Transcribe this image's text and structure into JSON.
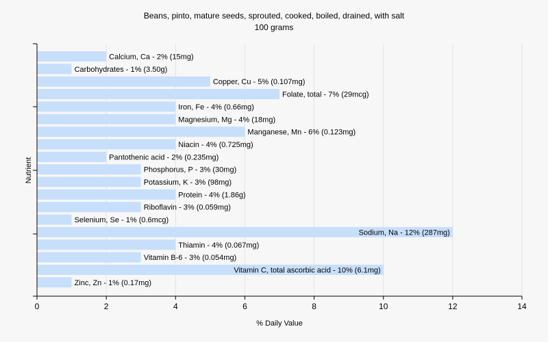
{
  "chart_data": {
    "type": "bar",
    "orientation": "horizontal",
    "title": "Beans, pinto, mature seeds, sprouted, cooked, boiled, drained, with salt",
    "subtitle": "100 grams",
    "xlabel": "% Daily Value",
    "ylabel": "Nutrient",
    "xlim": [
      0,
      14
    ],
    "xticks": [
      0,
      2,
      4,
      6,
      8,
      10,
      12,
      14
    ],
    "grid": true,
    "bar_color": "#c8dffb",
    "categories": [
      "Calcium, Ca",
      "Carbohydrates",
      "Copper, Cu",
      "Folate, total",
      "Iron, Fe",
      "Magnesium, Mg",
      "Manganese, Mn",
      "Niacin",
      "Pantothenic acid",
      "Phosphorus, P",
      "Potassium, K",
      "Protein",
      "Riboflavin",
      "Selenium, Se",
      "Sodium, Na",
      "Thiamin",
      "Vitamin B-6",
      "Vitamin C, total ascorbic acid",
      "Zinc, Zn"
    ],
    "values": [
      2,
      1,
      5,
      7,
      4,
      4,
      6,
      4,
      2,
      3,
      3,
      4,
      3,
      1,
      12,
      4,
      3,
      10,
      1
    ],
    "labels": [
      "Calcium, Ca - 2% (15mg)",
      "Carbohydrates - 1% (3.50g)",
      "Copper, Cu - 5% (0.107mg)",
      "Folate, total - 7% (29mcg)",
      "Iron, Fe - 4% (0.66mg)",
      "Magnesium, Mg - 4% (18mg)",
      "Manganese, Mn - 6% (0.123mg)",
      "Niacin - 4% (0.725mg)",
      "Pantothenic acid - 2% (0.235mg)",
      "Phosphorus, P - 3% (30mg)",
      "Potassium, K - 3% (98mg)",
      "Protein - 4% (1.86g)",
      "Riboflavin - 3% (0.059mg)",
      "Selenium, Se - 1% (0.6mcg)",
      "Sodium, Na - 12% (287mg)",
      "Thiamin - 4% (0.067mg)",
      "Vitamin B-6 - 3% (0.054mg)",
      "Vitamin C, total ascorbic acid - 10% (6.1mg)",
      "Zinc, Zn - 1% (0.17mg)"
    ]
  }
}
